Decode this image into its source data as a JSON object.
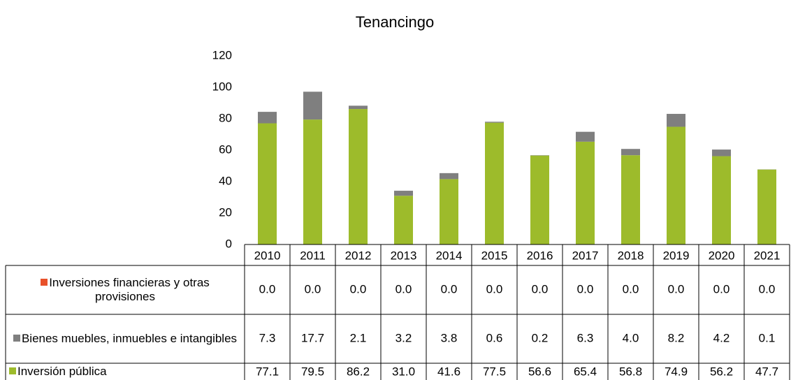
{
  "chart_data": {
    "type": "bar",
    "stacked": true,
    "title": "Tenancingo",
    "categories": [
      "2010",
      "2011",
      "2012",
      "2013",
      "2014",
      "2015",
      "2016",
      "2017",
      "2018",
      "2019",
      "2020",
      "2021"
    ],
    "series": [
      {
        "name": "Inversiones financieras y otras provisiones",
        "color": "#e8512a",
        "values": [
          0,
          0,
          0,
          0,
          0,
          0,
          0,
          0,
          0,
          0,
          0,
          0
        ],
        "value_labels": [
          "0.0",
          "0.0",
          "0.0",
          "0.0",
          "0.0",
          "0.0",
          "0.0",
          "0.0",
          "0.0",
          "0.0",
          "0.0",
          "0.0"
        ]
      },
      {
        "name": "Bienes muebles, inmuebles e intangibles",
        "color": "#7f7f7f",
        "values": [
          7.3,
          17.7,
          2.1,
          3.2,
          3.8,
          0.6,
          0.2,
          6.3,
          4.0,
          8.2,
          4.2,
          0.1
        ],
        "value_labels": [
          "7.3",
          "17.7",
          "2.1",
          "3.2",
          "3.8",
          "0.6",
          "0.2",
          "6.3",
          "4.0",
          "8.2",
          "4.2",
          "0.1"
        ]
      },
      {
        "name": "Inversión pública",
        "color": "#9dbb2b",
        "values": [
          77.1,
          79.5,
          86.2,
          31.0,
          41.6,
          77.5,
          56.6,
          65.4,
          56.8,
          74.9,
          56.2,
          47.7
        ],
        "value_labels": [
          "77.1",
          "79.5",
          "86.2",
          "31.0",
          "41.6",
          "77.5",
          "56.6",
          "65.4",
          "56.8",
          "74.9",
          "56.2",
          "47.7"
        ]
      }
    ],
    "ylim": [
      0,
      120
    ],
    "yticks": [
      0,
      20,
      40,
      60,
      80,
      100,
      120
    ],
    "grid": false
  }
}
